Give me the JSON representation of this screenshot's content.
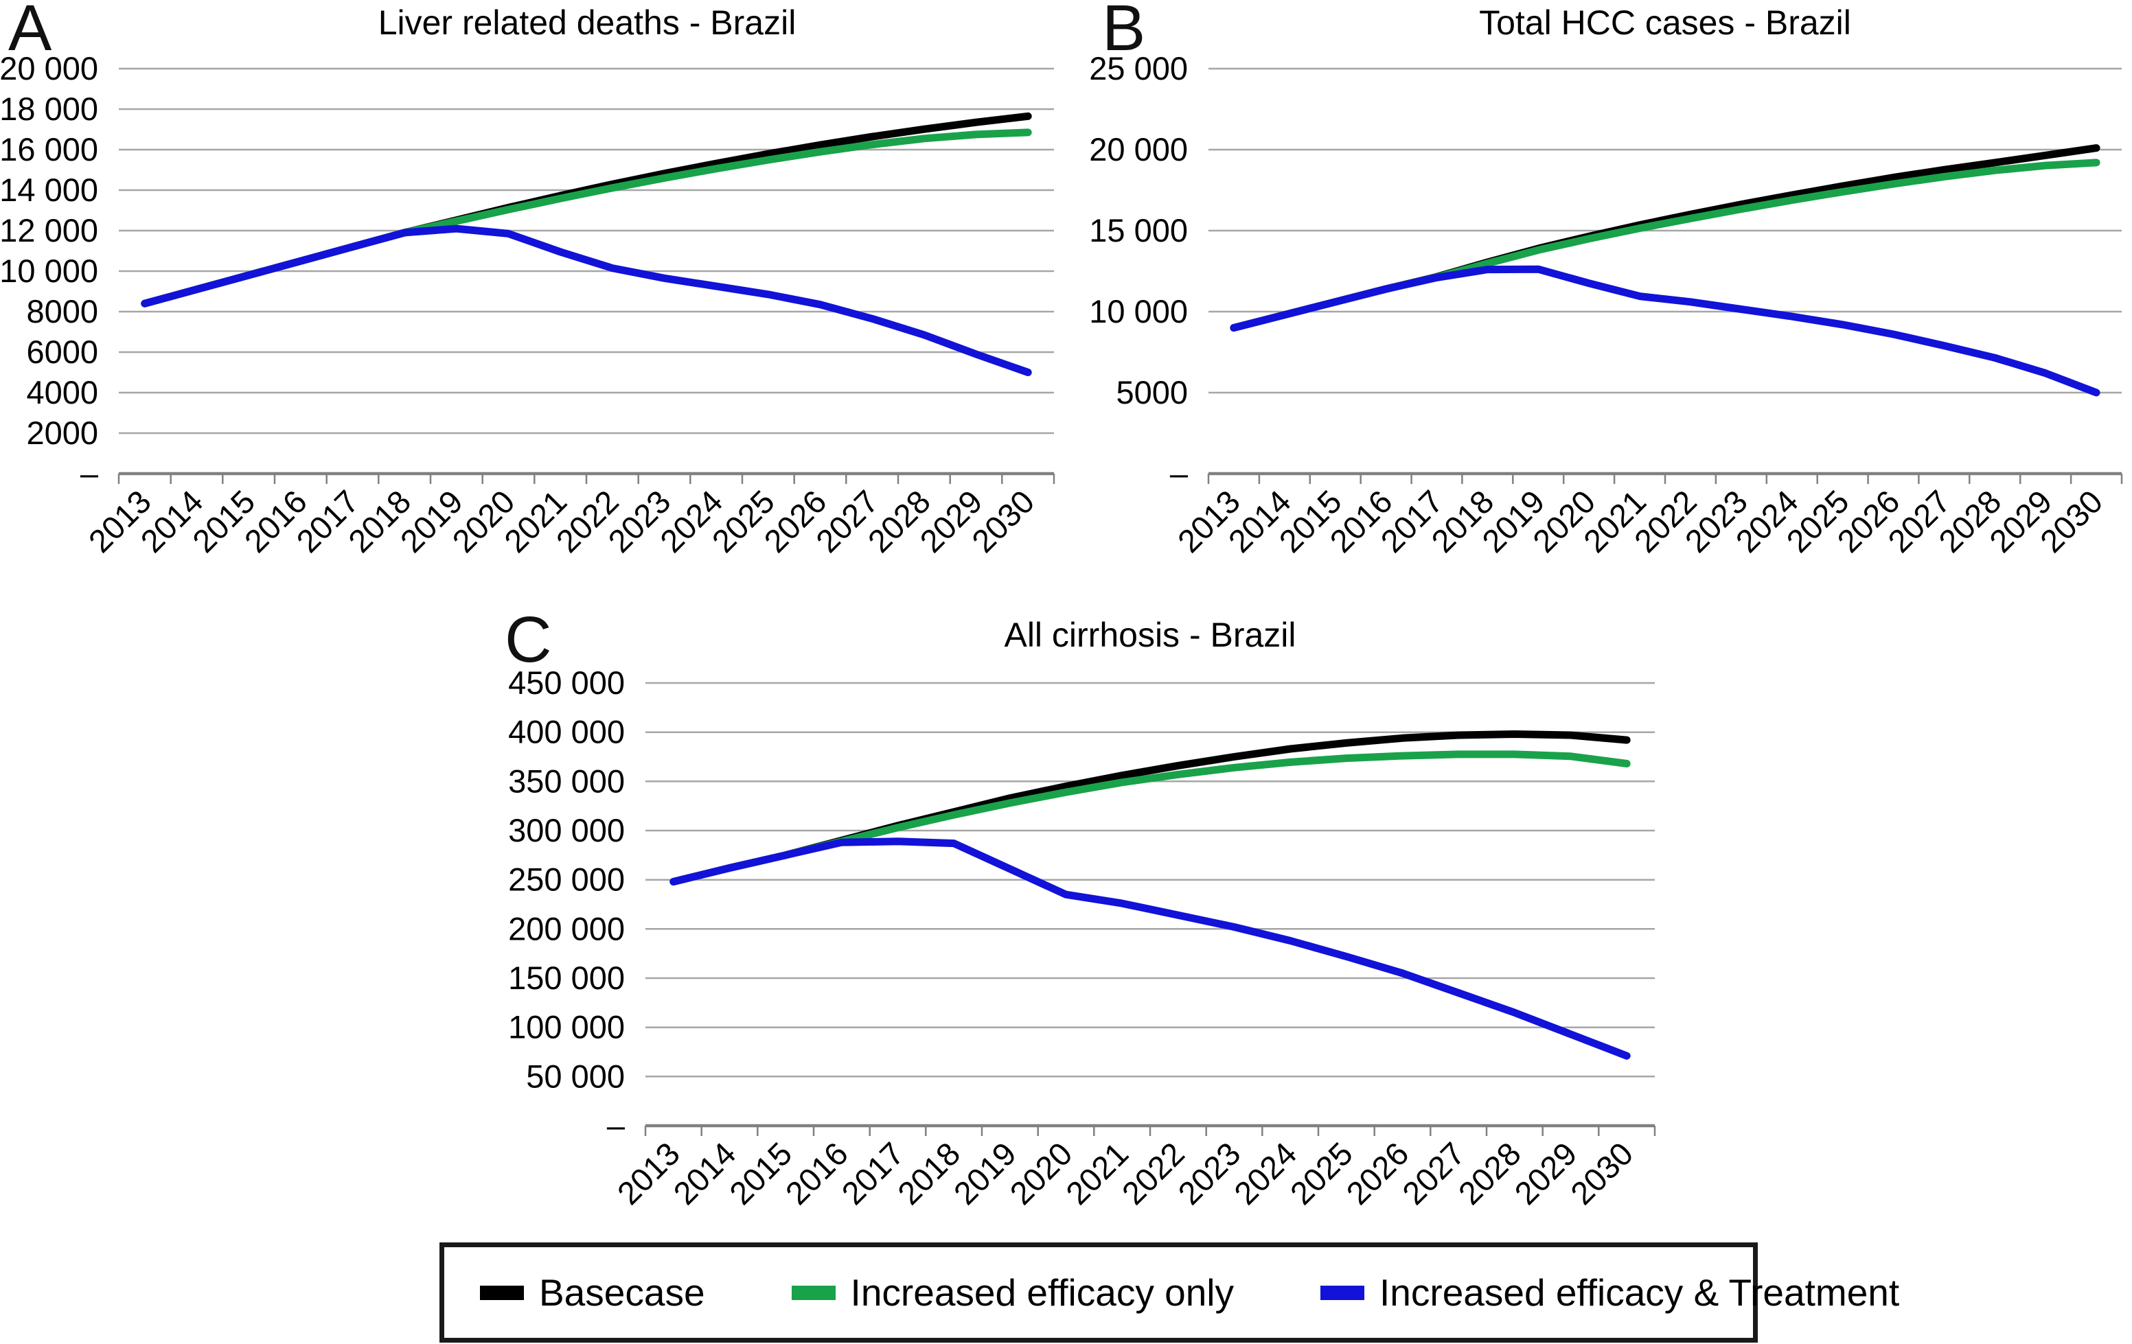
{
  "figure": {
    "style": {
      "background": "#ffffff",
      "grid_color": "#a6a6a6",
      "axis_color": "#808080",
      "series_line_width": 11
    },
    "legend": {
      "position": "bottom",
      "items": [
        {
          "label": "Basecase",
          "color": "#000000"
        },
        {
          "label": "Increased efficacy only",
          "color": "#19a24a"
        },
        {
          "label": "Increased efficacy & Treatment",
          "color": "#1212d8"
        }
      ]
    }
  },
  "chart_data": [
    {
      "type": "line",
      "panel_label": "A",
      "title": "Liver related deaths - Brazil",
      "xlabel": "",
      "ylabel": "",
      "grid": true,
      "ylim": [
        0,
        20000
      ],
      "x_labels": [
        "2013",
        "2014",
        "2015",
        "2016",
        "2017",
        "2018",
        "2019",
        "2020",
        "2021",
        "2022",
        "2023",
        "2024",
        "2025",
        "2026",
        "2027",
        "2028",
        "2029",
        "2030"
      ],
      "y_axis": {
        "ticks": [
          {
            "value": 20000,
            "label": "20 000"
          },
          {
            "value": 18000,
            "label": "18 000"
          },
          {
            "value": 16000,
            "label": "16 000"
          },
          {
            "value": 14000,
            "label": "14 000"
          },
          {
            "value": 12000,
            "label": "12 000"
          },
          {
            "value": 10000,
            "label": "10 000"
          },
          {
            "value": 8000,
            "label": "8000"
          },
          {
            "value": 6000,
            "label": "6000"
          },
          {
            "value": 4000,
            "label": "4000"
          },
          {
            "value": 2000,
            "label": "2000"
          },
          {
            "value": 0,
            "label": "–"
          }
        ]
      },
      "series": [
        {
          "name": "Basecase",
          "color": "#000000",
          "values": [
            8400,
            9100,
            9800,
            10500,
            11200,
            11900,
            12520,
            13140,
            13730,
            14290,
            14820,
            15320,
            15790,
            16230,
            16640,
            17010,
            17350,
            17650
          ]
        },
        {
          "name": "Increased efficacy only",
          "color": "#19a24a",
          "values": [
            8400,
            9100,
            9800,
            10500,
            11200,
            11900,
            12470,
            13040,
            13590,
            14110,
            14600,
            15060,
            15490,
            15890,
            16250,
            16550,
            16750,
            16850
          ]
        },
        {
          "name": "Increased efficacy & Treatment",
          "color": "#1212d8",
          "values": [
            8400,
            9100,
            9800,
            10500,
            11200,
            11900,
            12100,
            11850,
            10950,
            10150,
            9650,
            9250,
            8850,
            8350,
            7650,
            6850,
            5900,
            5000
          ]
        }
      ]
    },
    {
      "type": "line",
      "panel_label": "B",
      "title": "Total HCC cases - Brazil",
      "xlabel": "",
      "ylabel": "",
      "grid": true,
      "ylim": [
        0,
        25000
      ],
      "x_labels": [
        "2013",
        "2014",
        "2015",
        "2016",
        "2017",
        "2018",
        "2019",
        "2020",
        "2021",
        "2022",
        "2023",
        "2024",
        "2025",
        "2026",
        "2027",
        "2028",
        "2029",
        "2030"
      ],
      "y_axis": {
        "ticks": [
          {
            "value": 25000,
            "label": "25 000"
          },
          {
            "value": 20000,
            "label": "20 000"
          },
          {
            "value": 15000,
            "label": "15 000"
          },
          {
            "value": 10000,
            "label": "10 000"
          },
          {
            "value": 5000,
            "label": "5000"
          },
          {
            "value": 0,
            "label": "–"
          }
        ]
      },
      "series": [
        {
          "name": "Basecase",
          "color": "#000000",
          "values": [
            9000,
            9800,
            10600,
            11400,
            12150,
            13050,
            13900,
            14650,
            15350,
            16000,
            16620,
            17200,
            17750,
            18280,
            18760,
            19200,
            19650,
            20100
          ]
        },
        {
          "name": "Increased efficacy only",
          "color": "#19a24a",
          "values": [
            9000,
            9800,
            10600,
            11400,
            12120,
            12980,
            13800,
            14500,
            15150,
            15750,
            16330,
            16880,
            17400,
            17880,
            18330,
            18720,
            19020,
            19200
          ]
        },
        {
          "name": "Increased efficacy & Treatment",
          "color": "#1212d8",
          "values": [
            9000,
            9800,
            10600,
            11400,
            12100,
            12600,
            12620,
            11750,
            10950,
            10600,
            10150,
            9700,
            9200,
            8600,
            7900,
            7150,
            6200,
            5000
          ]
        }
      ]
    },
    {
      "type": "line",
      "panel_label": "C",
      "title": "All cirrhosis - Brazil",
      "xlabel": "",
      "ylabel": "",
      "grid": true,
      "ylim": [
        0,
        450000
      ],
      "x_labels": [
        "2013",
        "2014",
        "2015",
        "2016",
        "2017",
        "2018",
        "2019",
        "2020",
        "2021",
        "2022",
        "2023",
        "2024",
        "2025",
        "2026",
        "2027",
        "2028",
        "2029",
        "2030"
      ],
      "y_axis": {
        "ticks": [
          {
            "value": 450000,
            "label": "450 000"
          },
          {
            "value": 400000,
            "label": "400 000"
          },
          {
            "value": 350000,
            "label": "350 000"
          },
          {
            "value": 300000,
            "label": "300 000"
          },
          {
            "value": 250000,
            "label": "250 000"
          },
          {
            "value": 200000,
            "label": "200 000"
          },
          {
            "value": 150000,
            "label": "150 000"
          },
          {
            "value": 100000,
            "label": "100 000"
          },
          {
            "value": 50000,
            "label": "50 000"
          },
          {
            "value": 0,
            "label": "–"
          }
        ]
      },
      "series": [
        {
          "name": "Basecase",
          "color": "#000000",
          "values": [
            248000,
            262000,
            275000,
            290000,
            305000,
            319000,
            333000,
            345000,
            356000,
            366000,
            375000,
            383000,
            389000,
            394000,
            397000,
            398000,
            397000,
            392000
          ]
        },
        {
          "name": "Increased efficacy only",
          "color": "#19a24a",
          "values": [
            248000,
            262000,
            275000,
            289000,
            303000,
            316000,
            328000,
            339000,
            349000,
            357000,
            364000,
            369500,
            373500,
            376000,
            377500,
            377500,
            375500,
            368000
          ]
        },
        {
          "name": "Increased efficacy & Treatment",
          "color": "#1212d8",
          "values": [
            248000,
            262000,
            275000,
            288000,
            289000,
            287000,
            261000,
            235000,
            226000,
            214000,
            202000,
            188000,
            172000,
            155000,
            135000,
            115000,
            93000,
            71000
          ]
        }
      ]
    }
  ]
}
